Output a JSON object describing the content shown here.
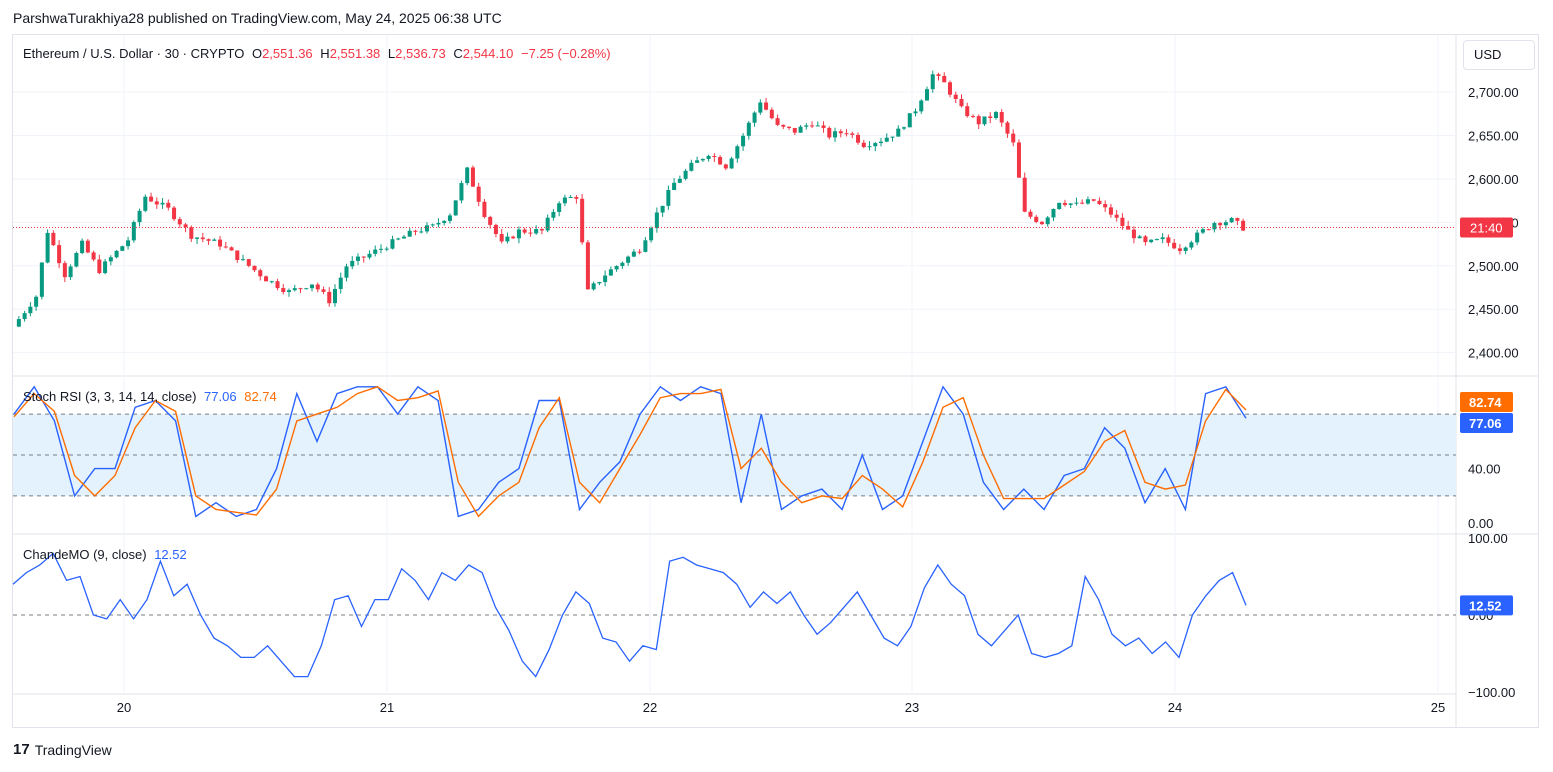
{
  "header": {
    "publisher_line": "ParshwaTurakhiya28 published on TradingView.com, May 24, 2025 06:38 UTC"
  },
  "symbol": {
    "title": "Ethereum / U.S. Dollar · 30 · CRYPTO",
    "o_label": "O",
    "o_value": "2,551.36",
    "h_label": "H",
    "h_value": "2,551.38",
    "l_label": "L",
    "l_value": "2,536.73",
    "c_label": "C",
    "c_value": "2,544.10",
    "change": "−7.25 (−0.28%)"
  },
  "currency_button": "USD",
  "colors": {
    "up": "#089981",
    "down": "#f23645",
    "stoch_k": "#2962ff",
    "stoch_d": "#ff6d00",
    "cmo": "#2962ff",
    "band_fill": "#e3f2fd",
    "grid": "#f0f3fa"
  },
  "price_badge": "21:40",
  "stoch": {
    "title": "Stoch RSI (3, 3, 14, 14, close)",
    "k_value": "77.06",
    "d_value": "82.74",
    "k_badge": "77.06",
    "d_badge": "82.74"
  },
  "cmo": {
    "title": "ChandeMO (9, close)",
    "value": "12.52",
    "badge": "12.52"
  },
  "footer": {
    "brand": "TradingView",
    "logo_text": "17"
  },
  "chart_data": [
    {
      "type": "candlestick",
      "title": "Ethereum / U.S. Dollar · 30 · CRYPTO",
      "x_ticks": [
        "20",
        "21",
        "22",
        "23",
        "24",
        "25"
      ],
      "y_ticks": [
        "2,400.00",
        "2,450.00",
        "2,500.00",
        "2,550.00",
        "2,600.00",
        "2,650.00",
        "2,700.00"
      ],
      "ylim": [
        2380,
        2760
      ],
      "last_price": 2544.1,
      "close_path": [
        [
          0,
          2430
        ],
        [
          4,
          2465
        ],
        [
          6,
          2540
        ],
        [
          9,
          2490
        ],
        [
          12,
          2525
        ],
        [
          15,
          2495
        ],
        [
          20,
          2530
        ],
        [
          23,
          2580
        ],
        [
          27,
          2565
        ],
        [
          31,
          2535
        ],
        [
          36,
          2525
        ],
        [
          40,
          2505
        ],
        [
          44,
          2485
        ],
        [
          48,
          2470
        ],
        [
          52,
          2480
        ],
        [
          55,
          2460
        ],
        [
          58,
          2500
        ],
        [
          61,
          2510
        ],
        [
          64,
          2520
        ],
        [
          67,
          2530
        ],
        [
          70,
          2540
        ],
        [
          73,
          2545
        ],
        [
          76,
          2560
        ],
        [
          79,
          2610
        ],
        [
          82,
          2560
        ],
        [
          85,
          2525
        ],
        [
          88,
          2540
        ],
        [
          92,
          2540
        ],
        [
          95,
          2575
        ],
        [
          98,
          2580
        ],
        [
          100,
          2470
        ],
        [
          103,
          2490
        ],
        [
          106,
          2505
        ],
        [
          109,
          2520
        ],
        [
          112,
          2560
        ],
        [
          115,
          2595
        ],
        [
          118,
          2615
        ],
        [
          121,
          2630
        ],
        [
          124,
          2615
        ],
        [
          127,
          2650
        ],
        [
          130,
          2690
        ],
        [
          133,
          2660
        ],
        [
          136,
          2655
        ],
        [
          139,
          2665
        ],
        [
          142,
          2650
        ],
        [
          145,
          2655
        ],
        [
          148,
          2640
        ],
        [
          151,
          2645
        ],
        [
          154,
          2655
        ],
        [
          157,
          2680
        ],
        [
          160,
          2720
        ],
        [
          162,
          2710
        ],
        [
          165,
          2680
        ],
        [
          168,
          2665
        ],
        [
          171,
          2675
        ],
        [
          174,
          2640
        ],
        [
          176,
          2560
        ],
        [
          179,
          2550
        ],
        [
          182,
          2575
        ],
        [
          185,
          2570
        ],
        [
          188,
          2575
        ],
        [
          191,
          2560
        ],
        [
          194,
          2540
        ],
        [
          197,
          2525
        ],
        [
          200,
          2530
        ],
        [
          203,
          2520
        ],
        [
          206,
          2535
        ],
        [
          209,
          2550
        ],
        [
          212,
          2552
        ],
        [
          214,
          2544
        ]
      ]
    },
    {
      "type": "line",
      "title": "Stoch RSI (3, 3, 14, 14, close)",
      "y_ticks": [
        "0.00",
        "40.00"
      ],
      "bands": [
        20,
        50,
        80
      ],
      "ylim": [
        -5,
        105
      ],
      "series": [
        {
          "name": "K",
          "values": [
            [
              0,
              80
            ],
            [
              2,
              100
            ],
            [
              4,
              75
            ],
            [
              6,
              20
            ],
            [
              8,
              40
            ],
            [
              10,
              40
            ],
            [
              12,
              85
            ],
            [
              14,
              90
            ],
            [
              16,
              75
            ],
            [
              18,
              5
            ],
            [
              20,
              15
            ],
            [
              22,
              5
            ],
            [
              24,
              10
            ],
            [
              26,
              40
            ],
            [
              28,
              95
            ],
            [
              30,
              60
            ],
            [
              32,
              95
            ],
            [
              34,
              100
            ],
            [
              36,
              100
            ],
            [
              38,
              80
            ],
            [
              40,
              100
            ],
            [
              42,
              90
            ],
            [
              44,
              5
            ],
            [
              46,
              10
            ],
            [
              48,
              30
            ],
            [
              50,
              40
            ],
            [
              52,
              90
            ],
            [
              54,
              90
            ],
            [
              56,
              10
            ],
            [
              58,
              30
            ],
            [
              60,
              45
            ],
            [
              62,
              80
            ],
            [
              64,
              100
            ],
            [
              66,
              90
            ],
            [
              68,
              100
            ],
            [
              70,
              95
            ],
            [
              72,
              15
            ],
            [
              74,
              80
            ],
            [
              76,
              10
            ],
            [
              78,
              20
            ],
            [
              80,
              25
            ],
            [
              82,
              10
            ],
            [
              84,
              50
            ],
            [
              86,
              10
            ],
            [
              88,
              20
            ],
            [
              90,
              60
            ],
            [
              92,
              100
            ],
            [
              94,
              80
            ],
            [
              96,
              30
            ],
            [
              98,
              10
            ],
            [
              100,
              25
            ],
            [
              102,
              10
            ],
            [
              104,
              35
            ],
            [
              106,
              40
            ],
            [
              108,
              70
            ],
            [
              110,
              55
            ],
            [
              112,
              15
            ],
            [
              114,
              40
            ],
            [
              116,
              10
            ],
            [
              118,
              95
            ],
            [
              120,
              100
            ],
            [
              122,
              77
            ]
          ]
        },
        {
          "name": "D",
          "values": [
            [
              0,
              78
            ],
            [
              2,
              95
            ],
            [
              4,
              82
            ],
            [
              6,
              35
            ],
            [
              8,
              20
            ],
            [
              10,
              35
            ],
            [
              12,
              70
            ],
            [
              14,
              90
            ],
            [
              16,
              82
            ],
            [
              18,
              20
            ],
            [
              20,
              10
            ],
            [
              22,
              8
            ],
            [
              24,
              6
            ],
            [
              26,
              25
            ],
            [
              28,
              75
            ],
            [
              30,
              80
            ],
            [
              32,
              85
            ],
            [
              34,
              95
            ],
            [
              36,
              100
            ],
            [
              38,
              90
            ],
            [
              40,
              92
            ],
            [
              42,
              97
            ],
            [
              44,
              30
            ],
            [
              46,
              5
            ],
            [
              48,
              20
            ],
            [
              50,
              30
            ],
            [
              52,
              70
            ],
            [
              54,
              92
            ],
            [
              56,
              30
            ],
            [
              58,
              15
            ],
            [
              60,
              40
            ],
            [
              62,
              65
            ],
            [
              64,
              92
            ],
            [
              66,
              95
            ],
            [
              68,
              95
            ],
            [
              70,
              98
            ],
            [
              72,
              40
            ],
            [
              74,
              55
            ],
            [
              76,
              30
            ],
            [
              78,
              15
            ],
            [
              80,
              20
            ],
            [
              82,
              18
            ],
            [
              84,
              35
            ],
            [
              86,
              25
            ],
            [
              88,
              12
            ],
            [
              90,
              45
            ],
            [
              92,
              85
            ],
            [
              94,
              92
            ],
            [
              96,
              50
            ],
            [
              98,
              18
            ],
            [
              100,
              18
            ],
            [
              102,
              18
            ],
            [
              104,
              28
            ],
            [
              106,
              38
            ],
            [
              108,
              60
            ],
            [
              110,
              68
            ],
            [
              112,
              30
            ],
            [
              114,
              25
            ],
            [
              116,
              28
            ],
            [
              118,
              75
            ],
            [
              120,
              98
            ],
            [
              122,
              83
            ]
          ]
        }
      ]
    },
    {
      "type": "line",
      "title": "ChandeMO (9, close)",
      "y_ticks": [
        "100.00",
        "0.00",
        "−100.00"
      ],
      "ylim": [
        -100,
        100
      ],
      "series": [
        {
          "name": "CMO",
          "values": [
            [
              0,
              40
            ],
            [
              2,
              55
            ],
            [
              4,
              65
            ],
            [
              6,
              80
            ],
            [
              8,
              45
            ],
            [
              10,
              50
            ],
            [
              12,
              0
            ],
            [
              14,
              -5
            ],
            [
              16,
              20
            ],
            [
              18,
              -5
            ],
            [
              20,
              20
            ],
            [
              22,
              70
            ],
            [
              24,
              25
            ],
            [
              26,
              40
            ],
            [
              28,
              0
            ],
            [
              30,
              -30
            ],
            [
              32,
              -40
            ],
            [
              34,
              -55
            ],
            [
              36,
              -55
            ],
            [
              38,
              -40
            ],
            [
              40,
              -60
            ],
            [
              42,
              -80
            ],
            [
              44,
              -80
            ],
            [
              46,
              -40
            ],
            [
              48,
              20
            ],
            [
              50,
              25
            ],
            [
              52,
              -15
            ],
            [
              54,
              20
            ],
            [
              56,
              20
            ],
            [
              58,
              60
            ],
            [
              60,
              45
            ],
            [
              62,
              20
            ],
            [
              64,
              55
            ],
            [
              66,
              45
            ],
            [
              68,
              65
            ],
            [
              70,
              55
            ],
            [
              72,
              10
            ],
            [
              74,
              -20
            ],
            [
              76,
              -60
            ],
            [
              78,
              -80
            ],
            [
              80,
              -45
            ],
            [
              82,
              0
            ],
            [
              84,
              30
            ],
            [
              86,
              15
            ],
            [
              88,
              -30
            ],
            [
              90,
              -35
            ],
            [
              92,
              -60
            ],
            [
              94,
              -40
            ],
            [
              96,
              -45
            ],
            [
              98,
              70
            ],
            [
              100,
              75
            ],
            [
              102,
              65
            ],
            [
              104,
              60
            ],
            [
              106,
              55
            ],
            [
              108,
              40
            ],
            [
              110,
              10
            ],
            [
              112,
              30
            ],
            [
              114,
              15
            ],
            [
              116,
              30
            ],
            [
              118,
              0
            ],
            [
              120,
              -25
            ],
            [
              122,
              -10
            ],
            [
              124,
              10
            ],
            [
              126,
              30
            ],
            [
              128,
              0
            ],
            [
              130,
              -30
            ],
            [
              132,
              -40
            ],
            [
              134,
              -15
            ],
            [
              136,
              35
            ],
            [
              138,
              65
            ],
            [
              140,
              40
            ],
            [
              142,
              25
            ],
            [
              144,
              -25
            ],
            [
              146,
              -40
            ],
            [
              148,
              -20
            ],
            [
              150,
              0
            ],
            [
              152,
              -50
            ],
            [
              154,
              -55
            ],
            [
              156,
              -50
            ],
            [
              158,
              -40
            ],
            [
              160,
              50
            ],
            [
              162,
              20
            ],
            [
              164,
              -25
            ],
            [
              166,
              -40
            ],
            [
              168,
              -30
            ],
            [
              170,
              -50
            ],
            [
              172,
              -35
            ],
            [
              174,
              -55
            ],
            [
              176,
              0
            ],
            [
              178,
              25
            ],
            [
              180,
              45
            ],
            [
              182,
              55
            ],
            [
              184,
              12.52
            ]
          ]
        }
      ]
    }
  ]
}
